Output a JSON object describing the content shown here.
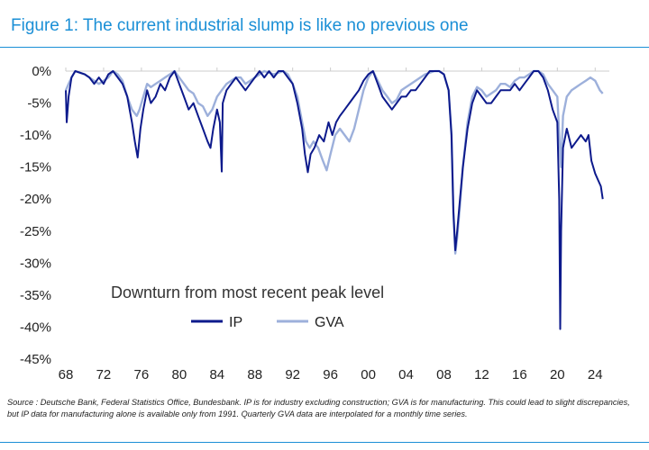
{
  "figure": {
    "title": "Figure 1: The current industrial slump is like no previous one",
    "source": "Source : Deutsche Bank, Federal Statistics Office, Bundesbank. IP is for industry excluding construction; GVA is for manufacturing. This could lead to slight discrepancies, but IP data for manufacturing alone is available only from 1991. Quarterly GVA data are interpolated for a monthly time series."
  },
  "colors": {
    "title": "#1a8fd6",
    "ip": "#0d1a8c",
    "gva": "#9db0db",
    "axis": "#cccccc"
  },
  "chart_data": {
    "type": "line",
    "annotation": "Downturn from most recent peak level",
    "legend_position": "bottom-center",
    "grid": false,
    "x_tick_labels": [
      "68",
      "72",
      "76",
      "80",
      "84",
      "88",
      "92",
      "96",
      "00",
      "04",
      "08",
      "12",
      "16",
      "20",
      "24"
    ],
    "x_tick_values": [
      1968,
      1972,
      1976,
      1980,
      1984,
      1988,
      1992,
      1996,
      2000,
      2004,
      2008,
      2012,
      2016,
      2020,
      2024
    ],
    "xlim": [
      1968,
      2025.5
    ],
    "y_tick_labels": [
      "0%",
      "-5%",
      "-10%",
      "-15%",
      "-20%",
      "-25%",
      "-30%",
      "-35%",
      "-40%",
      "-45%"
    ],
    "y_tick_values": [
      0,
      -5,
      -10,
      -15,
      -20,
      -25,
      -30,
      -35,
      -40,
      -45
    ],
    "ylim": [
      -45,
      0
    ],
    "series": [
      {
        "name": "IP",
        "color": "#0d1a8c",
        "points": [
          [
            1968.0,
            -3
          ],
          [
            1968.1,
            -8
          ],
          [
            1968.3,
            -4
          ],
          [
            1968.6,
            -1
          ],
          [
            1969.0,
            0
          ],
          [
            1970.0,
            -0.5
          ],
          [
            1970.5,
            -1
          ],
          [
            1971.0,
            -2
          ],
          [
            1971.5,
            -1
          ],
          [
            1972.0,
            -2
          ],
          [
            1972.5,
            -0.5
          ],
          [
            1973.0,
            0
          ],
          [
            1973.5,
            -1
          ],
          [
            1974.0,
            -2
          ],
          [
            1974.5,
            -4
          ],
          [
            1975.0,
            -8
          ],
          [
            1975.3,
            -11
          ],
          [
            1975.6,
            -13.5
          ],
          [
            1975.9,
            -9
          ],
          [
            1976.2,
            -6
          ],
          [
            1976.6,
            -3
          ],
          [
            1977.0,
            -5
          ],
          [
            1977.5,
            -4
          ],
          [
            1978.0,
            -2
          ],
          [
            1978.5,
            -3
          ],
          [
            1979.0,
            -1
          ],
          [
            1979.5,
            0
          ],
          [
            1980.0,
            -2
          ],
          [
            1980.5,
            -4
          ],
          [
            1981.0,
            -6
          ],
          [
            1981.5,
            -5
          ],
          [
            1982.0,
            -7
          ],
          [
            1982.5,
            -9
          ],
          [
            1983.0,
            -11
          ],
          [
            1983.3,
            -12
          ],
          [
            1983.6,
            -9
          ],
          [
            1984.0,
            -6
          ],
          [
            1984.3,
            -8
          ],
          [
            1984.5,
            -15.7
          ],
          [
            1984.6,
            -5
          ],
          [
            1985.0,
            -3
          ],
          [
            1985.5,
            -2
          ],
          [
            1986.0,
            -1
          ],
          [
            1986.5,
            -2
          ],
          [
            1987.0,
            -3
          ],
          [
            1987.5,
            -2
          ],
          [
            1988.0,
            -1
          ],
          [
            1988.5,
            0
          ],
          [
            1989.0,
            -1
          ],
          [
            1989.5,
            0
          ],
          [
            1990.0,
            -1
          ],
          [
            1990.5,
            0
          ],
          [
            1991.0,
            0
          ],
          [
            1991.5,
            -1
          ],
          [
            1992.0,
            -2
          ],
          [
            1992.5,
            -5
          ],
          [
            1993.0,
            -9
          ],
          [
            1993.3,
            -13
          ],
          [
            1993.6,
            -15.8
          ],
          [
            1993.9,
            -13
          ],
          [
            1994.3,
            -12
          ],
          [
            1994.8,
            -10
          ],
          [
            1995.3,
            -11
          ],
          [
            1995.8,
            -8
          ],
          [
            1996.2,
            -10
          ],
          [
            1996.6,
            -8
          ],
          [
            1997.0,
            -7
          ],
          [
            1997.5,
            -6
          ],
          [
            1998.0,
            -5
          ],
          [
            1998.5,
            -4
          ],
          [
            1999.0,
            -3
          ],
          [
            1999.5,
            -1.5
          ],
          [
            2000.0,
            -0.5
          ],
          [
            2000.5,
            0
          ],
          [
            2001.0,
            -2
          ],
          [
            2001.5,
            -4
          ],
          [
            2002.0,
            -5
          ],
          [
            2002.5,
            -6
          ],
          [
            2003.0,
            -5
          ],
          [
            2003.5,
            -4
          ],
          [
            2004.0,
            -4
          ],
          [
            2004.5,
            -3
          ],
          [
            2005.0,
            -3
          ],
          [
            2005.5,
            -2
          ],
          [
            2006.0,
            -1
          ],
          [
            2006.5,
            0
          ],
          [
            2007.0,
            0
          ],
          [
            2007.5,
            0
          ],
          [
            2008.0,
            -0.5
          ],
          [
            2008.5,
            -3
          ],
          [
            2008.8,
            -10
          ],
          [
            2009.0,
            -22
          ],
          [
            2009.2,
            -28
          ],
          [
            2009.4,
            -25
          ],
          [
            2009.7,
            -20
          ],
          [
            2010.0,
            -15
          ],
          [
            2010.5,
            -9
          ],
          [
            2011.0,
            -5
          ],
          [
            2011.5,
            -3
          ],
          [
            2012.0,
            -4
          ],
          [
            2012.5,
            -5
          ],
          [
            2013.0,
            -5
          ],
          [
            2013.5,
            -4
          ],
          [
            2014.0,
            -3
          ],
          [
            2014.5,
            -3
          ],
          [
            2015.0,
            -3
          ],
          [
            2015.5,
            -2
          ],
          [
            2016.0,
            -3
          ],
          [
            2016.5,
            -2
          ],
          [
            2017.0,
            -1
          ],
          [
            2017.5,
            0
          ],
          [
            2018.0,
            0
          ],
          [
            2018.5,
            -1
          ],
          [
            2019.0,
            -3
          ],
          [
            2019.5,
            -6
          ],
          [
            2020.0,
            -8
          ],
          [
            2020.2,
            -20
          ],
          [
            2020.3,
            -40.3
          ],
          [
            2020.4,
            -25
          ],
          [
            2020.6,
            -12
          ],
          [
            2021.0,
            -9
          ],
          [
            2021.5,
            -12
          ],
          [
            2022.0,
            -11
          ],
          [
            2022.5,
            -10
          ],
          [
            2023.0,
            -11
          ],
          [
            2023.3,
            -10
          ],
          [
            2023.6,
            -14
          ],
          [
            2024.0,
            -16
          ],
          [
            2024.3,
            -17
          ],
          [
            2024.6,
            -18
          ],
          [
            2024.8,
            -20
          ]
        ]
      },
      {
        "name": "GVA",
        "color": "#9db0db",
        "points": [
          [
            1968.0,
            -3
          ],
          [
            1968.3,
            -2
          ],
          [
            1968.6,
            -1
          ],
          [
            1969.0,
            0
          ],
          [
            1970.0,
            -0.5
          ],
          [
            1971.0,
            -1.5
          ],
          [
            1971.5,
            -2
          ],
          [
            1972.0,
            -1.5
          ],
          [
            1972.5,
            -1
          ],
          [
            1973.0,
            0
          ],
          [
            1973.5,
            -0.5
          ],
          [
            1974.0,
            -1.5
          ],
          [
            1974.5,
            -4
          ],
          [
            1975.0,
            -6
          ],
          [
            1975.5,
            -7
          ],
          [
            1975.8,
            -6
          ],
          [
            1976.2,
            -4
          ],
          [
            1976.6,
            -2
          ],
          [
            1977.0,
            -2.5
          ],
          [
            1977.5,
            -2
          ],
          [
            1978.0,
            -1.5
          ],
          [
            1978.5,
            -1
          ],
          [
            1979.0,
            -0.5
          ],
          [
            1979.5,
            0
          ],
          [
            1980.0,
            -1
          ],
          [
            1980.5,
            -2
          ],
          [
            1981.0,
            -3
          ],
          [
            1981.5,
            -3.5
          ],
          [
            1982.0,
            -5
          ],
          [
            1982.5,
            -5.5
          ],
          [
            1983.0,
            -7
          ],
          [
            1983.5,
            -6
          ],
          [
            1984.0,
            -4
          ],
          [
            1984.5,
            -3
          ],
          [
            1985.0,
            -2
          ],
          [
            1985.5,
            -1.5
          ],
          [
            1986.0,
            -1
          ],
          [
            1986.5,
            -1
          ],
          [
            1987.0,
            -2
          ],
          [
            1987.5,
            -1.5
          ],
          [
            1988.0,
            -1
          ],
          [
            1988.5,
            -0.5
          ],
          [
            1989.0,
            0
          ],
          [
            1990.0,
            -0.5
          ],
          [
            1991.0,
            0
          ],
          [
            1991.5,
            -0.5
          ],
          [
            1992.0,
            -2
          ],
          [
            1992.5,
            -4
          ],
          [
            1993.0,
            -8
          ],
          [
            1993.4,
            -11
          ],
          [
            1993.8,
            -12
          ],
          [
            1994.2,
            -11
          ],
          [
            1994.7,
            -12
          ],
          [
            1995.2,
            -14
          ],
          [
            1995.6,
            -15.5
          ],
          [
            1996.0,
            -13
          ],
          [
            1996.5,
            -10
          ],
          [
            1997.0,
            -9
          ],
          [
            1997.5,
            -10
          ],
          [
            1998.0,
            -11
          ],
          [
            1998.5,
            -9
          ],
          [
            1999.0,
            -6
          ],
          [
            1999.5,
            -3
          ],
          [
            2000.0,
            -1
          ],
          [
            2000.5,
            0
          ],
          [
            2001.0,
            -1.5
          ],
          [
            2001.5,
            -3
          ],
          [
            2002.0,
            -4
          ],
          [
            2002.5,
            -5
          ],
          [
            2003.0,
            -4.5
          ],
          [
            2003.5,
            -3
          ],
          [
            2004.0,
            -2.5
          ],
          [
            2004.5,
            -2
          ],
          [
            2005.0,
            -1.5
          ],
          [
            2005.5,
            -1
          ],
          [
            2006.0,
            -0.5
          ],
          [
            2007.0,
            0
          ],
          [
            2007.5,
            0
          ],
          [
            2008.0,
            -0.5
          ],
          [
            2008.5,
            -3
          ],
          [
            2008.8,
            -10
          ],
          [
            2009.0,
            -22
          ],
          [
            2009.2,
            -28.5
          ],
          [
            2009.4,
            -26
          ],
          [
            2009.7,
            -21
          ],
          [
            2010.0,
            -15
          ],
          [
            2010.5,
            -8
          ],
          [
            2011.0,
            -4
          ],
          [
            2011.5,
            -2.5
          ],
          [
            2012.0,
            -3
          ],
          [
            2012.5,
            -4
          ],
          [
            2013.0,
            -3.5
          ],
          [
            2013.5,
            -3
          ],
          [
            2014.0,
            -2
          ],
          [
            2014.5,
            -2
          ],
          [
            2015.0,
            -2.5
          ],
          [
            2015.5,
            -1.5
          ],
          [
            2016.0,
            -1
          ],
          [
            2016.5,
            -1
          ],
          [
            2017.0,
            -0.5
          ],
          [
            2017.5,
            0
          ],
          [
            2018.0,
            0
          ],
          [
            2018.5,
            -0.5
          ],
          [
            2019.0,
            -2
          ],
          [
            2019.5,
            -3
          ],
          [
            2020.0,
            -4
          ],
          [
            2020.2,
            -10
          ],
          [
            2020.4,
            -15
          ],
          [
            2020.6,
            -7
          ],
          [
            2021.0,
            -4
          ],
          [
            2021.5,
            -3
          ],
          [
            2022.0,
            -2.5
          ],
          [
            2022.5,
            -2
          ],
          [
            2023.0,
            -1.5
          ],
          [
            2023.5,
            -1
          ],
          [
            2024.0,
            -1.5
          ],
          [
            2024.5,
            -3
          ],
          [
            2024.8,
            -3.5
          ]
        ]
      }
    ]
  }
}
